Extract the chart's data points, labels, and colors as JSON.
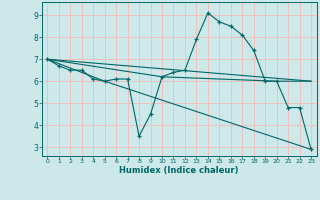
{
  "xlabel": "Humidex (Indice chaleur)",
  "bg_color": "#cce8e8",
  "grid_color": "#f0c0c0",
  "line_color": "#006666",
  "xlim": [
    -0.5,
    23.5
  ],
  "ylim": [
    2.6,
    9.6
  ],
  "xticks": [
    0,
    1,
    2,
    3,
    4,
    5,
    6,
    7,
    8,
    9,
    10,
    11,
    12,
    13,
    14,
    15,
    16,
    17,
    18,
    19,
    20,
    21,
    22,
    23
  ],
  "yticks": [
    3,
    4,
    5,
    6,
    7,
    8,
    9
  ],
  "lines": [
    {
      "x": [
        0,
        1,
        2,
        3,
        4,
        5,
        6,
        7,
        8,
        9,
        10,
        11,
        12,
        13,
        14,
        15,
        16,
        17,
        18,
        19,
        20,
        21,
        22,
        23
      ],
      "y": [
        7.0,
        6.7,
        6.5,
        6.5,
        6.1,
        6.0,
        6.1,
        6.1,
        3.5,
        4.5,
        6.2,
        6.4,
        6.5,
        7.9,
        9.1,
        8.7,
        8.5,
        8.1,
        7.4,
        6.0,
        6.0,
        4.8,
        4.8,
        2.9
      ],
      "marker": "+"
    },
    {
      "x": [
        0,
        5,
        23
      ],
      "y": [
        7.0,
        6.0,
        2.9
      ],
      "marker": null
    },
    {
      "x": [
        0,
        10,
        20,
        23
      ],
      "y": [
        7.0,
        6.2,
        6.0,
        6.0
      ],
      "marker": null
    },
    {
      "x": [
        0,
        23
      ],
      "y": [
        7.0,
        6.0
      ],
      "marker": null
    }
  ]
}
